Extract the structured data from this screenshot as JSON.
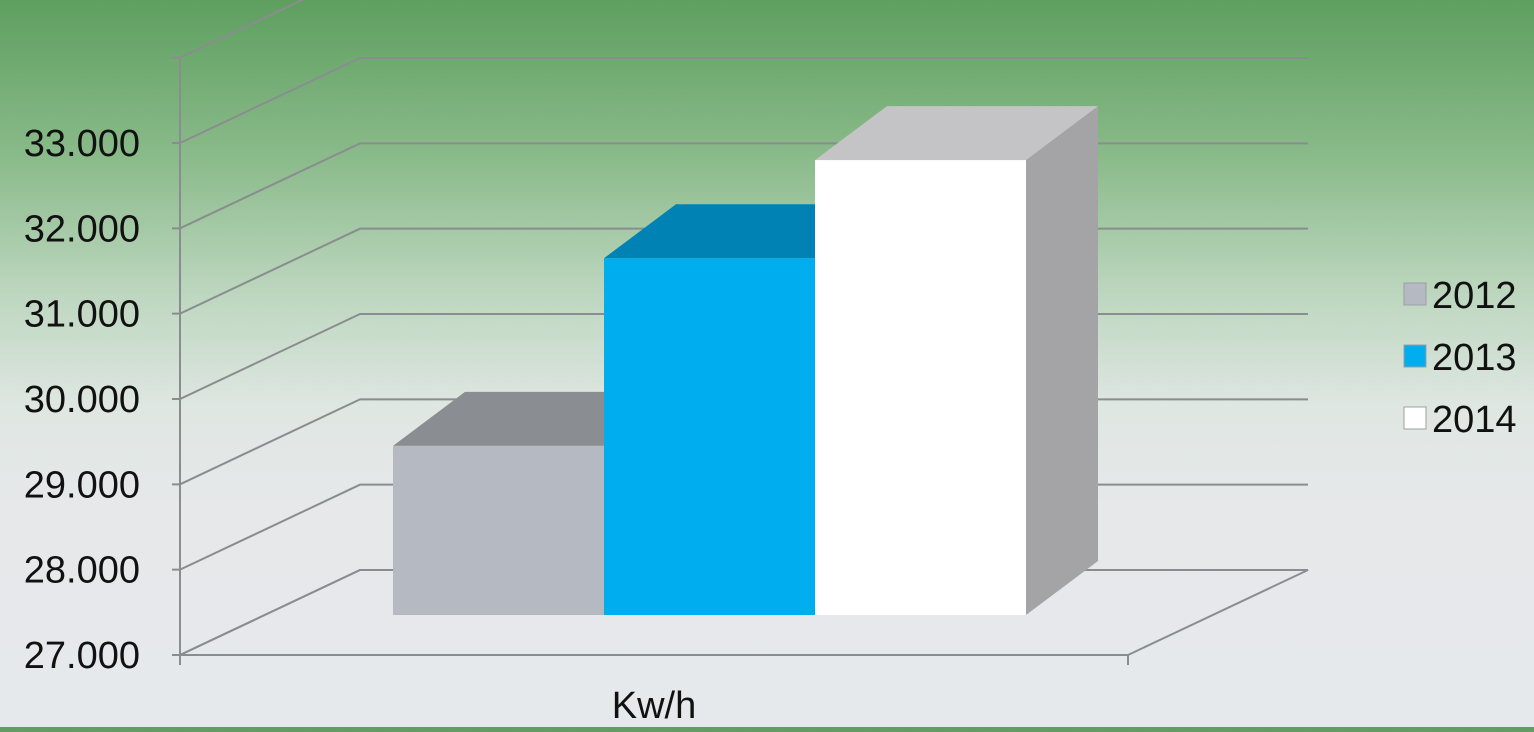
{
  "chart_data": {
    "type": "bar",
    "style": "3d-clustered-column",
    "categories": [
      "Kw/h"
    ],
    "series": [
      {
        "name": "2012",
        "values": [
          29450
        ],
        "color": "#b5bac2",
        "top_color": "#8a8d91",
        "side_color": "#9a9c9f"
      },
      {
        "name": "2013",
        "values": [
          31650
        ],
        "color": "#00adee",
        "top_color": "#0083b4",
        "side_color": "#0083b4"
      },
      {
        "name": "2014",
        "values": [
          32800
        ],
        "color": "#ffffff",
        "top_color": "#c4c4c6",
        "side_color": "#a4a4a6"
      }
    ],
    "ylim": [
      27000,
      33000
    ],
    "y_tick_values": [
      27000,
      28000,
      29000,
      30000,
      31000,
      32000,
      33000
    ],
    "y_tick_labels": [
      "27.000",
      "28.000",
      "29.000",
      "30.000",
      "31.000",
      "32.000",
      "33.000"
    ],
    "xlabel": "Kw/h",
    "ylabel": "",
    "title": "",
    "grid": true,
    "legend_position": "right"
  }
}
